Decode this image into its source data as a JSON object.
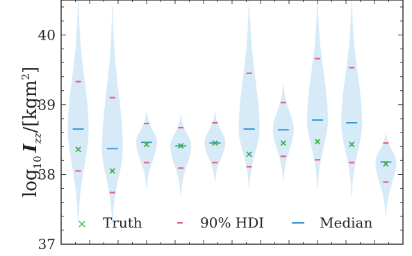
{
  "chart_data": {
    "type": "violin",
    "title": "",
    "xlabel": "",
    "ylabel": "log10 Izz/[kgm2]",
    "ylabel_parts": {
      "log": "log",
      "log_sub": "10",
      "I": "I",
      "I_sub": "zz",
      "unit_open": "/[kgm",
      "unit_sup": "2",
      "unit_close": "]"
    },
    "ylim": [
      37,
      40.5
    ],
    "yticks": [
      37,
      38,
      39,
      40
    ],
    "ytick_labels": [
      "37",
      "38",
      "39",
      "40"
    ],
    "grid": false,
    "legend_placement": "bottom",
    "legend": [
      {
        "label": "Truth",
        "marker": "x",
        "color": "#3cb043"
      },
      {
        "label": "90% HDI",
        "marker": "dash",
        "color": "#e8607a"
      },
      {
        "label": "Median",
        "marker": "line",
        "color": "#3a9ad9"
      }
    ],
    "colors": {
      "violin": "#d6eaf8",
      "truth": "#3cb043",
      "hdi": "#e8607a",
      "median": "#3a9ad9"
    },
    "series": [
      {
        "median": 38.65,
        "hdi": [
          38.05,
          39.33
        ],
        "truth": 38.36,
        "range": [
          37.3,
          40.5
        ]
      },
      {
        "median": 38.37,
        "hdi": [
          37.74,
          39.1
        ],
        "truth": 38.05,
        "range": [
          37.3,
          40.4
        ]
      },
      {
        "median": 38.46,
        "hdi": [
          38.17,
          38.73
        ],
        "truth": 38.43,
        "range": [
          37.8,
          38.9
        ]
      },
      {
        "median": 38.41,
        "hdi": [
          38.09,
          38.67
        ],
        "truth": 38.41,
        "range": [
          37.7,
          38.85
        ]
      },
      {
        "median": 38.45,
        "hdi": [
          38.17,
          38.74
        ],
        "truth": 38.45,
        "range": [
          37.9,
          38.9
        ]
      },
      {
        "median": 38.65,
        "hdi": [
          38.11,
          39.45
        ],
        "truth": 38.29,
        "range": [
          37.8,
          40.5
        ]
      },
      {
        "median": 38.64,
        "hdi": [
          38.26,
          39.03
        ],
        "truth": 38.45,
        "range": [
          37.9,
          39.3
        ]
      },
      {
        "median": 38.78,
        "hdi": [
          38.21,
          39.66
        ],
        "truth": 38.47,
        "range": [
          37.8,
          40.5
        ]
      },
      {
        "median": 38.74,
        "hdi": [
          38.17,
          39.53
        ],
        "truth": 38.43,
        "range": [
          37.7,
          40.5
        ]
      },
      {
        "median": 38.18,
        "hdi": [
          37.89,
          38.45
        ],
        "truth": 38.15,
        "range": [
          37.4,
          38.6
        ]
      }
    ]
  }
}
